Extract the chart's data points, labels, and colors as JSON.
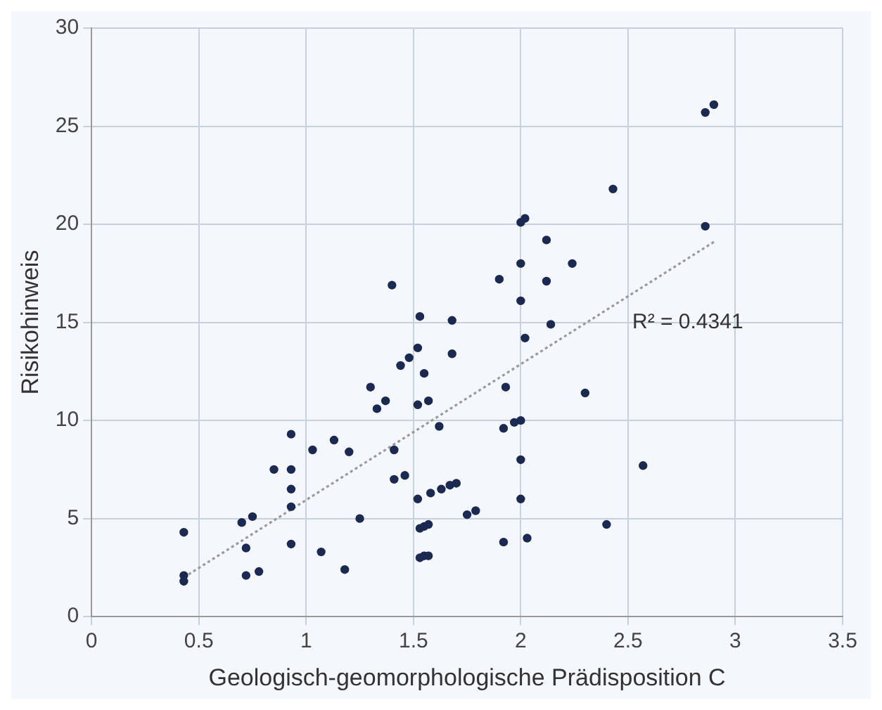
{
  "chart_data": {
    "type": "scatter",
    "xlabel": "Geologisch-geomorphologische Prädisposition C",
    "ylabel": "Risikohinweis",
    "xlim": [
      0,
      3.5
    ],
    "xticks": [
      0,
      0.5,
      1,
      1.5,
      2,
      2.5,
      3,
      3.5
    ],
    "ylim": [
      0,
      30
    ],
    "yticks": [
      0,
      5,
      10,
      15,
      20,
      25,
      30
    ],
    "grid": true,
    "legend": false,
    "marker": "circle",
    "annotations": [
      "R² = 0.4341"
    ],
    "series": [
      {
        "color": "#1c2a52",
        "x": [
          0.43,
          0.43,
          0.43,
          0.7,
          0.72,
          0.72,
          0.75,
          0.78,
          0.85,
          0.93,
          0.93,
          0.93,
          0.93,
          0.93,
          1.03,
          1.07,
          1.13,
          1.18,
          1.2,
          1.25,
          1.3,
          1.33,
          1.37,
          1.4,
          1.41,
          1.41,
          1.44,
          1.46,
          1.48,
          1.53,
          1.52,
          1.52,
          1.52,
          1.55,
          1.57,
          1.53,
          1.55,
          1.57,
          1.53,
          1.55,
          1.57,
          1.58,
          1.62,
          1.63,
          1.67,
          1.68,
          1.68,
          1.7,
          1.75,
          1.79,
          1.9,
          1.92,
          1.92,
          1.93,
          1.97,
          2.0,
          2.02,
          2.0,
          2.0,
          2.0,
          2.0,
          2.0,
          2.02,
          2.03,
          2.12,
          2.12,
          2.14,
          2.24,
          2.3,
          2.4,
          2.43,
          2.57,
          2.86,
          2.9,
          2.86
        ],
        "values": [
          4.3,
          2.1,
          1.8,
          4.8,
          3.5,
          2.1,
          5.1,
          2.3,
          7.5,
          9.3,
          7.5,
          6.5,
          5.6,
          3.7,
          8.5,
          3.3,
          9.0,
          2.4,
          8.4,
          5.0,
          11.7,
          10.6,
          11.0,
          16.9,
          8.5,
          7.0,
          12.8,
          7.2,
          13.2,
          15.3,
          13.7,
          10.8,
          6.0,
          12.4,
          11.0,
          4.5,
          4.6,
          4.7,
          3.0,
          3.1,
          3.1,
          6.3,
          9.7,
          6.5,
          6.7,
          15.1,
          13.4,
          6.8,
          5.2,
          5.4,
          17.2,
          3.8,
          9.6,
          11.7,
          9.9,
          20.1,
          20.3,
          18.0,
          16.1,
          10.0,
          8.0,
          6.0,
          14.2,
          4.0,
          19.2,
          17.1,
          14.9,
          18.0,
          11.4,
          4.7,
          21.8,
          7.7,
          25.7,
          26.1,
          19.9
        ]
      },
      {
        "type": "line",
        "color": "#9a9a9a",
        "line_style": "dotted",
        "marker": "none",
        "x": [
          0.43,
          2.9
        ],
        "values": [
          2.0,
          19.1
        ]
      }
    ]
  }
}
